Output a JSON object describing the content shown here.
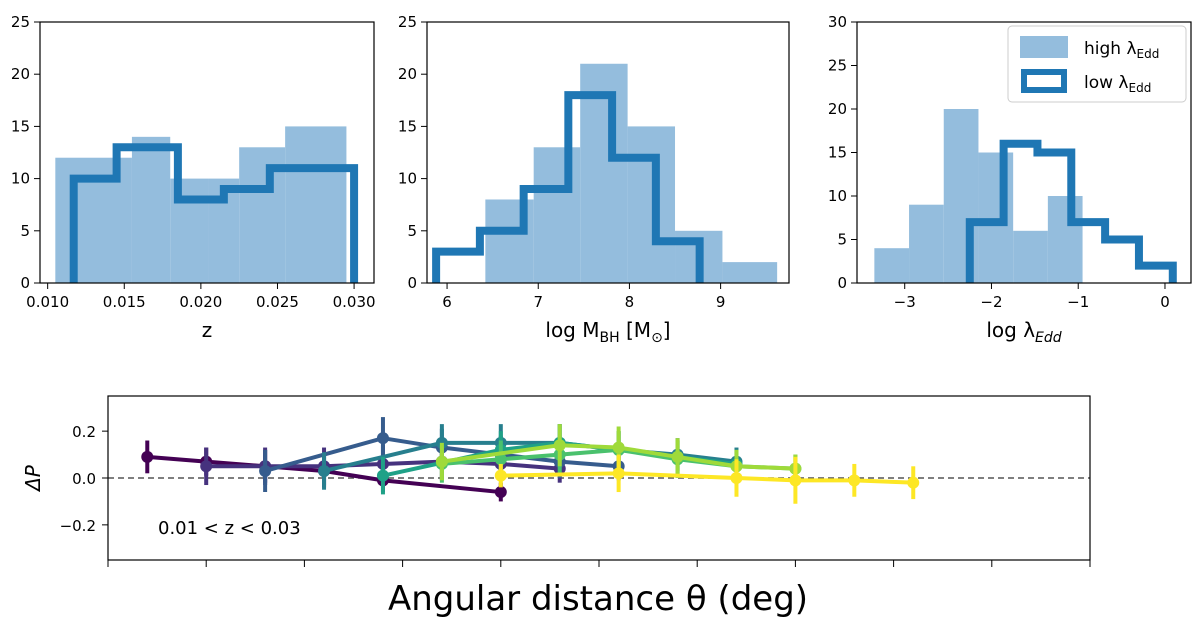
{
  "colors": {
    "hist_fill": "#94bddd",
    "hist_step": "#1f77b4",
    "zero_line": "#555555",
    "series": [
      "#440154",
      "#46327e",
      "#365c8d",
      "#277f8e",
      "#1fa187",
      "#4ac16d",
      "#9fda3a",
      "#fde725"
    ]
  },
  "chart_data": [
    {
      "type": "histogram",
      "xlabel": "z",
      "xlim": [
        0.0095,
        0.0313
      ],
      "ylim": [
        0,
        25
      ],
      "xticks": [
        {
          "value": 0.01,
          "label": "0.010"
        },
        {
          "value": 0.015,
          "label": "0.015"
        },
        {
          "value": 0.02,
          "label": "0.020"
        },
        {
          "value": 0.025,
          "label": "0.025"
        },
        {
          "value": 0.03,
          "label": "0.030"
        }
      ],
      "yticks": [
        {
          "value": 0,
          "label": "0"
        },
        {
          "value": 5,
          "label": "5"
        },
        {
          "value": 10,
          "label": "10"
        },
        {
          "value": 15,
          "label": "15"
        },
        {
          "value": 20,
          "label": "20"
        },
        {
          "value": 25,
          "label": "25"
        }
      ],
      "high_edd": {
        "edges": [
          0.0105,
          0.0155,
          0.018,
          0.0205,
          0.0225,
          0.0255,
          0.0295
        ],
        "counts": [
          12,
          14,
          10,
          10,
          13,
          15
        ]
      },
      "low_edd": {
        "edges": [
          0.0117,
          0.0145,
          0.0185,
          0.0215,
          0.0245,
          0.03
        ],
        "counts": [
          10,
          13,
          8,
          9,
          11
        ]
      }
    },
    {
      "type": "histogram",
      "xlabel": "log M",
      "xlabel_sub": "BH",
      "xlabel_suffix": " [M",
      "xlabel_sub2": "⊙",
      "xlabel_end": "]",
      "xlim": [
        5.78,
        9.75
      ],
      "ylim": [
        0,
        25
      ],
      "xticks": [
        {
          "value": 6,
          "label": "6"
        },
        {
          "value": 7,
          "label": "7"
        },
        {
          "value": 8,
          "label": "8"
        },
        {
          "value": 9,
          "label": "9"
        }
      ],
      "yticks": [
        {
          "value": 0,
          "label": "0"
        },
        {
          "value": 5,
          "label": "5"
        },
        {
          "value": 10,
          "label": "10"
        },
        {
          "value": 15,
          "label": "15"
        },
        {
          "value": 20,
          "label": "20"
        },
        {
          "value": 25,
          "label": "25"
        }
      ],
      "high_edd": {
        "edges": [
          6.42,
          6.95,
          7.46,
          7.98,
          8.5,
          9.02,
          9.62
        ],
        "counts": [
          8,
          13,
          21,
          15,
          5,
          2
        ]
      },
      "low_edd": {
        "edges": [
          5.88,
          6.36,
          6.84,
          7.33,
          7.81,
          8.29,
          8.77
        ],
        "counts": [
          3,
          5,
          9,
          18,
          12,
          4
        ]
      }
    },
    {
      "type": "histogram",
      "xlabel": "log λ",
      "xlabel_sub": "Edd",
      "xlim": [
        -3.55,
        0.3
      ],
      "ylim": [
        0,
        30
      ],
      "xticks": [
        {
          "value": -3,
          "label": "−3"
        },
        {
          "value": -2,
          "label": "−2"
        },
        {
          "value": -1,
          "label": "−1"
        },
        {
          "value": 0,
          "label": "0"
        }
      ],
      "yticks": [
        {
          "value": 0,
          "label": "0"
        },
        {
          "value": 5,
          "label": "5"
        },
        {
          "value": 10,
          "label": "10"
        },
        {
          "value": 15,
          "label": "15"
        },
        {
          "value": 20,
          "label": "20"
        },
        {
          "value": 25,
          "label": "25"
        },
        {
          "value": 30,
          "label": "30"
        }
      ],
      "high_edd": {
        "edges": [
          -3.35,
          -2.95,
          -2.55,
          -2.15,
          -1.75,
          -1.35,
          -0.95
        ],
        "counts": [
          4,
          9,
          20,
          15,
          6,
          10
        ]
      },
      "low_edd": {
        "edges": [
          -2.25,
          -1.86,
          -1.47,
          -1.08,
          -0.69,
          -0.3,
          0.09
        ],
        "counts": [
          7,
          16,
          15,
          7,
          5,
          2
        ]
      },
      "legend": {
        "position": "top-right",
        "high_label": "high λ",
        "high_sub": "Edd",
        "low_label": "low λ",
        "low_sub": "Edd"
      }
    },
    {
      "type": "line",
      "ylabel": "ΔP",
      "xlabel": "Angular distance θ (deg)",
      "xlim": [
        0,
        10
      ],
      "ylim": [
        -0.35,
        0.35
      ],
      "xticks": [
        0,
        1,
        2,
        3,
        4,
        5,
        6,
        7,
        8,
        9,
        10
      ],
      "yticks": [
        {
          "value": 0.2,
          "label": "0.2"
        },
        {
          "value": 0.0,
          "label": "0.0"
        },
        {
          "value": -0.2,
          "label": "−0.2"
        }
      ],
      "reference_line": 0,
      "annotation": "0.01 < z < 0.03",
      "series": [
        {
          "x": [
            0.4,
            1.0,
            1.6,
            2.2,
            2.8,
            4.0
          ],
          "y": [
            0.09,
            0.07,
            0.05,
            0.03,
            -0.01,
            -0.06
          ],
          "err": [
            0.07,
            0.06,
            0.07,
            0.07,
            0.05,
            0.04
          ]
        },
        {
          "x": [
            1.0,
            1.6,
            2.2,
            2.8,
            3.4,
            4.0,
            4.6
          ],
          "y": [
            0.05,
            0.05,
            0.05,
            0.06,
            0.07,
            0.06,
            0.04
          ],
          "err": [
            0.08,
            0.08,
            0.08,
            0.08,
            0.08,
            0.07,
            0.06
          ]
        },
        {
          "x": [
            1.6,
            2.8,
            3.4,
            4.0,
            4.6,
            5.2
          ],
          "y": [
            0.03,
            0.17,
            0.13,
            0.1,
            0.07,
            0.05
          ],
          "err": [
            0.09,
            0.09,
            0.08,
            0.08,
            0.07,
            0.06
          ]
        },
        {
          "x": [
            2.2,
            3.4,
            4.0,
            4.6,
            5.2,
            5.8,
            6.4
          ],
          "y": [
            0.03,
            0.15,
            0.15,
            0.15,
            0.12,
            0.1,
            0.07
          ],
          "err": [
            0.08,
            0.08,
            0.08,
            0.08,
            0.08,
            0.07,
            0.06
          ]
        },
        {
          "x": [
            2.8,
            4.0,
            4.6,
            5.2,
            5.8,
            6.4
          ],
          "y": [
            0.01,
            0.12,
            0.15,
            0.12,
            0.09,
            0.06
          ],
          "err": [
            0.08,
            0.08,
            0.08,
            0.08,
            0.07,
            0.06
          ]
        },
        {
          "x": [
            3.4,
            4.0,
            4.6,
            5.2,
            5.8,
            6.4,
            7.0
          ],
          "y": [
            0.06,
            0.08,
            0.1,
            0.12,
            0.08,
            0.05,
            0.04
          ],
          "err": [
            0.08,
            0.08,
            0.08,
            0.08,
            0.08,
            0.07,
            0.06
          ]
        },
        {
          "x": [
            3.4,
            4.6,
            5.2,
            5.8,
            6.4,
            7.0
          ],
          "y": [
            0.07,
            0.14,
            0.13,
            0.09,
            0.05,
            0.04
          ],
          "err": [
            0.08,
            0.09,
            0.09,
            0.08,
            0.07,
            0.06
          ]
        },
        {
          "x": [
            4.0,
            5.2,
            6.4,
            7.0,
            7.6,
            8.2
          ],
          "y": [
            0.01,
            0.02,
            0.0,
            -0.01,
            -0.01,
            -0.02
          ],
          "err": [
            0.05,
            0.08,
            0.08,
            0.1,
            0.07,
            0.07
          ]
        }
      ]
    }
  ]
}
